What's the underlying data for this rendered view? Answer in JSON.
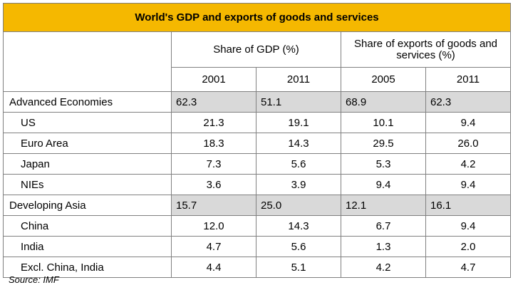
{
  "chart_data": {
    "type": "table",
    "title": "World's GDP and exports of goods and services",
    "column_groups": [
      {
        "label": "Share of GDP (%)",
        "years": [
          "2001",
          "2011"
        ]
      },
      {
        "label": "Share of exports of goods and services (%)",
        "years": [
          "2005",
          "2011"
        ]
      }
    ],
    "rows": [
      {
        "label": "Advanced Economies",
        "level": 0,
        "values": [
          "62.3",
          "51.1",
          "68.9",
          "62.3"
        ]
      },
      {
        "label": "US",
        "level": 1,
        "values": [
          "21.3",
          "19.1",
          "10.1",
          "9.4"
        ]
      },
      {
        "label": "Euro Area",
        "level": 1,
        "values": [
          "18.3",
          "14.3",
          "29.5",
          "26.0"
        ]
      },
      {
        "label": "Japan",
        "level": 1,
        "values": [
          "7.3",
          "5.6",
          "5.3",
          "4.2"
        ]
      },
      {
        "label": "NIEs",
        "level": 1,
        "values": [
          "3.6",
          "3.9",
          "9.4",
          "9.4"
        ]
      },
      {
        "label": "Developing Asia",
        "level": 0,
        "values": [
          "15.7",
          "25.0",
          "12.1",
          "16.1"
        ]
      },
      {
        "label": "China",
        "level": 1,
        "values": [
          "12.0",
          "14.3",
          "6.7",
          "9.4"
        ]
      },
      {
        "label": "India",
        "level": 1,
        "values": [
          "4.7",
          "5.6",
          "1.3",
          "2.0"
        ]
      },
      {
        "label": "Excl. China, India",
        "level": 1,
        "values": [
          "4.4",
          "5.1",
          "4.2",
          "4.7"
        ]
      }
    ],
    "source": "Source: IMF"
  },
  "colors": {
    "title_bg": "#f5b800",
    "group_row_bg": "#d9d9d9",
    "border": "#808080"
  }
}
